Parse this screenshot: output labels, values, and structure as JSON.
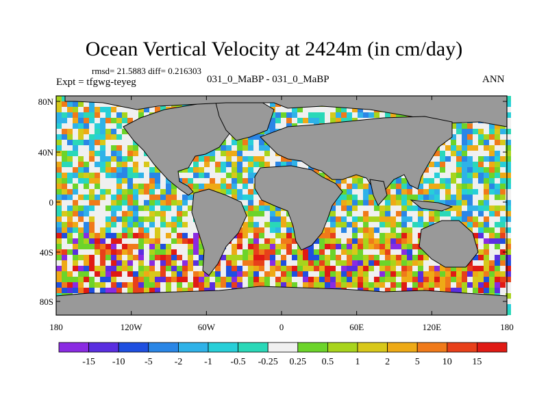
{
  "title": "Ocean Vertical Velocity at 2424m (in cm/day)",
  "stats": "rmsd= 21.5883 diff= 0.216303",
  "experiment": "Expt = tfgwg-teyeg",
  "case_label": "031_0_MaBP - 031_0_MaBP",
  "season": "ANN",
  "lat_ticks": [
    "80N",
    "40N",
    "0",
    "40S",
    "80S"
  ],
  "lon_ticks": [
    "180",
    "120W",
    "60W",
    "0",
    "60E",
    "120E",
    "180"
  ],
  "colorbar": {
    "labels": [
      "-15",
      "-10",
      "-5",
      "-2",
      "-1",
      "-0.5",
      "-0.25",
      "0.25",
      "0.5",
      "1",
      "2",
      "5",
      "10",
      "15"
    ],
    "colors": [
      "#8a2be2",
      "#5a2ee0",
      "#1f4fe0",
      "#2a86e6",
      "#2fb2e8",
      "#27cfd8",
      "#2ad8b8",
      "#f0f0f0",
      "#6cd42a",
      "#a8d41c",
      "#d8c81a",
      "#eeaa16",
      "#f07a1a",
      "#e8401a",
      "#e01a14"
    ]
  },
  "colors": {
    "land": "#999999",
    "frame": "#000000"
  }
}
